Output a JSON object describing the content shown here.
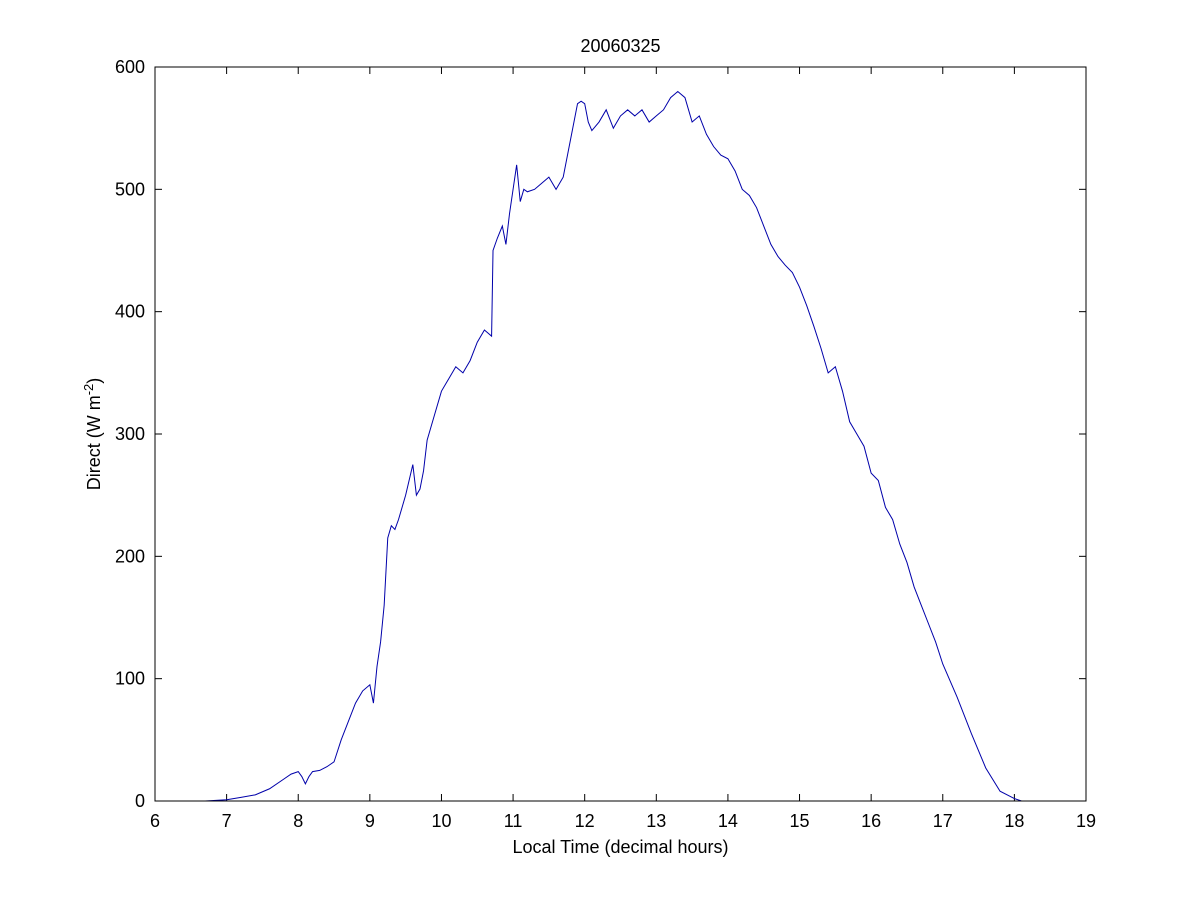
{
  "chart_data": {
    "type": "line",
    "title": "20060325",
    "xlabel": "Local Time (decimal hours)",
    "ylabel": {
      "text": "Direct (W m",
      "superscript": "-2",
      "suffix": ")"
    },
    "xlim": [
      6,
      19
    ],
    "ylim": [
      0,
      600
    ],
    "xticks": [
      6,
      7,
      8,
      9,
      10,
      11,
      12,
      13,
      14,
      15,
      16,
      17,
      18,
      19
    ],
    "yticks": [
      0,
      100,
      200,
      300,
      400,
      500,
      600
    ],
    "grid": false,
    "line_color": "#0000aa",
    "series": [
      {
        "x": [
          6.47,
          6.7,
          7.0,
          7.2,
          7.4,
          7.6,
          7.8,
          7.9,
          8.0,
          8.05,
          8.1,
          8.15,
          8.2,
          8.3,
          8.4,
          8.5,
          8.6,
          8.7,
          8.8,
          8.9,
          9.0,
          9.05,
          9.1,
          9.15,
          9.2,
          9.25,
          9.3,
          9.35,
          9.4,
          9.5,
          9.6,
          9.65,
          9.7,
          9.75,
          9.8,
          9.9,
          10.0,
          10.1,
          10.2,
          10.3,
          10.4,
          10.5,
          10.6,
          10.7,
          10.72,
          10.78,
          10.85,
          10.9,
          10.95,
          11.0,
          11.05,
          11.1,
          11.15,
          11.2,
          11.3,
          11.4,
          11.5,
          11.6,
          11.7,
          11.8,
          11.9,
          11.95,
          12.0,
          12.05,
          12.1,
          12.2,
          12.3,
          12.4,
          12.5,
          12.6,
          12.7,
          12.8,
          12.9,
          13.0,
          13.1,
          13.2,
          13.3,
          13.4,
          13.5,
          13.6,
          13.7,
          13.8,
          13.9,
          14.0,
          14.1,
          14.2,
          14.3,
          14.4,
          14.5,
          14.6,
          14.7,
          14.8,
          14.9,
          15.0,
          15.1,
          15.2,
          15.3,
          15.4,
          15.5,
          15.6,
          15.7,
          15.8,
          15.9,
          16.0,
          16.1,
          16.2,
          16.3,
          16.4,
          16.5,
          16.6,
          16.7,
          16.8,
          16.9,
          17.0,
          17.2,
          17.4,
          17.6,
          17.8,
          18.0,
          18.1,
          18.2,
          18.35
        ],
        "y": [
          0,
          0,
          1,
          3,
          5,
          10,
          18,
          22,
          24,
          20,
          14,
          20,
          24,
          25,
          28,
          32,
          50,
          65,
          80,
          90,
          95,
          80,
          110,
          130,
          160,
          215,
          225,
          222,
          230,
          250,
          275,
          250,
          255,
          270,
          295,
          315,
          335,
          345,
          355,
          350,
          360,
          375,
          385,
          380,
          450,
          460,
          470,
          455,
          480,
          500,
          520,
          490,
          500,
          498,
          500,
          505,
          510,
          500,
          510,
          540,
          570,
          572,
          570,
          555,
          548,
          555,
          565,
          550,
          560,
          565,
          560,
          565,
          555,
          560,
          565,
          575,
          580,
          575,
          555,
          560,
          545,
          535,
          528,
          525,
          515,
          500,
          495,
          485,
          470,
          455,
          445,
          438,
          432,
          420,
          405,
          388,
          370,
          350,
          355,
          335,
          310,
          300,
          290,
          268,
          262,
          240,
          230,
          210,
          195,
          175,
          160,
          145,
          130,
          112,
          85,
          55,
          27,
          8,
          2,
          0,
          0,
          0
        ]
      }
    ]
  }
}
